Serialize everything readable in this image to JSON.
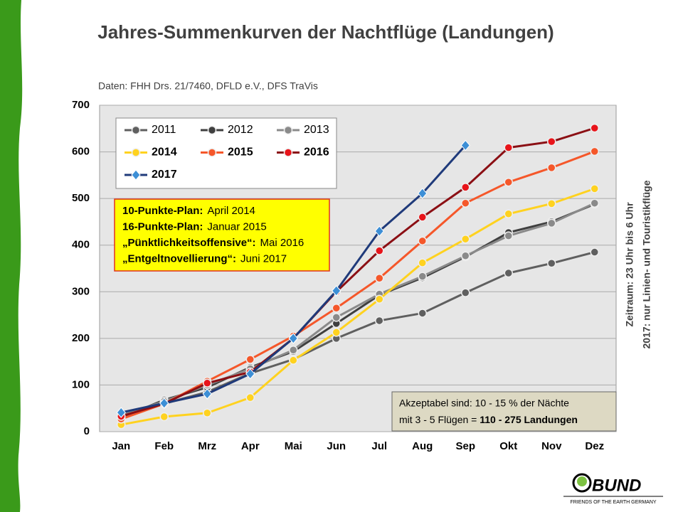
{
  "chart_data": {
    "type": "line",
    "title": "Jahres-Summenkurven der Nachtflüge (Landungen)",
    "subtitle": "Daten: FHH Drs. 21/7460, DFLD e.V., DFS TraVis",
    "categories": [
      "Jan",
      "Feb",
      "Mrz",
      "Apr",
      "Mai",
      "Jun",
      "Jul",
      "Aug",
      "Sep",
      "Okt",
      "Nov",
      "Dez"
    ],
    "ylim": [
      0,
      700
    ],
    "yticks": [
      0,
      100,
      200,
      300,
      400,
      500,
      600,
      700
    ],
    "grid": true,
    "series": [
      {
        "name": "2011",
        "color": "#5f5f5f",
        "marker": "circle",
        "values": [
          28,
          60,
          85,
          125,
          155,
          200,
          238,
          254,
          298,
          340,
          361,
          385
        ]
      },
      {
        "name": "2012",
        "color": "#3f3f3f",
        "marker": "circle",
        "values": [
          30,
          68,
          95,
          138,
          172,
          232,
          293,
          330,
          375,
          427,
          450,
          488
        ]
      },
      {
        "name": "2013",
        "color": "#8a8a8a",
        "marker": "circle",
        "values": [
          35,
          65,
          100,
          135,
          175,
          245,
          295,
          333,
          377,
          420,
          447,
          490
        ]
      },
      {
        "name": "2014",
        "color": "#ffd21f",
        "marker": "circle",
        "values": [
          15,
          32,
          40,
          73,
          153,
          213,
          284,
          362,
          413,
          467,
          489,
          521
        ]
      },
      {
        "name": "2015",
        "color": "#f5572a",
        "marker": "circle",
        "values": [
          27,
          60,
          108,
          155,
          205,
          265,
          329,
          409,
          490,
          535,
          566,
          601
        ]
      },
      {
        "name": "2016",
        "color": "#8b0f14",
        "marker_color": "#e8141a",
        "marker": "circle",
        "values": [
          33,
          60,
          104,
          128,
          200,
          300,
          388,
          460,
          524,
          609,
          622,
          651
        ]
      },
      {
        "name": "2017",
        "color": "#1f3a7a",
        "marker_color": "#3d8fd6",
        "marker": "diamond",
        "values": [
          41,
          61,
          81,
          124,
          200,
          302,
          430,
          511,
          614,
          null,
          null,
          null
        ]
      }
    ],
    "plan_box": [
      {
        "label": "10-Punkte-Plan:",
        "text": "April 2014"
      },
      {
        "label": "16-Punkte-Plan:",
        "text": "Januar 2015"
      },
      {
        "label": "„Pünktlichkeitsoffensive“:",
        "text": "Mai 2016"
      },
      {
        "label": "„Entgeltnovellierung“:",
        "text": "Juni 2017"
      }
    ],
    "accept_box": {
      "line1": "Akzeptabel sind:  10 - 15 % der Nächte",
      "line2": "mit 3 - 5 Flügen = ",
      "line2_bold": "110 - 275 Landungen"
    },
    "side_note": [
      "Zeitraum: 23 Uhr bis 6 Uhr",
      "2017: nur Linien- und Touristikflüge"
    ],
    "logo": {
      "name": "BUND",
      "tagline": "FRIENDS OF THE EARTH GERMANY"
    }
  }
}
